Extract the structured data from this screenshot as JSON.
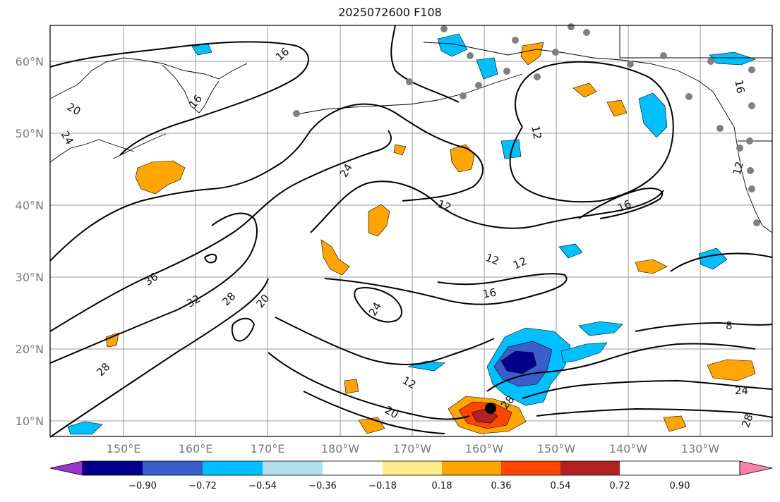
{
  "title": "2025072600 F108",
  "lat_labels": [
    "60°N",
    "50°N",
    "40°N",
    "30°N",
    "20°N",
    "10°N"
  ],
  "lon_labels": [
    "150°E",
    "160°E",
    "170°E",
    "180°W",
    "170°W",
    "160°W",
    "150°W",
    "140°W",
    "130°W"
  ],
  "colorbar": {
    "ticks": [
      "−0.90",
      "−0.72",
      "−0.54",
      "−0.36",
      "−0.18",
      "0.18",
      "0.36",
      "0.54",
      "0.72",
      "0.90"
    ],
    "colors": [
      "#9a32cd",
      "#00008b",
      "#3a5fcd",
      "#00bfff",
      "#b2dfee",
      "#ffffff",
      "#ffec8b",
      "#ffa500",
      "#ff4500",
      "#b22222",
      "#ff82ab"
    ]
  },
  "contour_labels": [
    "16",
    "16",
    "20",
    "24",
    "24",
    "12",
    "16",
    "12",
    "12",
    "12",
    "16",
    "8",
    "36",
    "32",
    "28",
    "20",
    "24",
    "28",
    "12",
    "20",
    "28",
    "24",
    "28",
    "12",
    "16"
  ],
  "colors": {
    "coast": "#000000",
    "grid": "#999999",
    "station": "#808080",
    "storm_center": "#000000"
  }
}
